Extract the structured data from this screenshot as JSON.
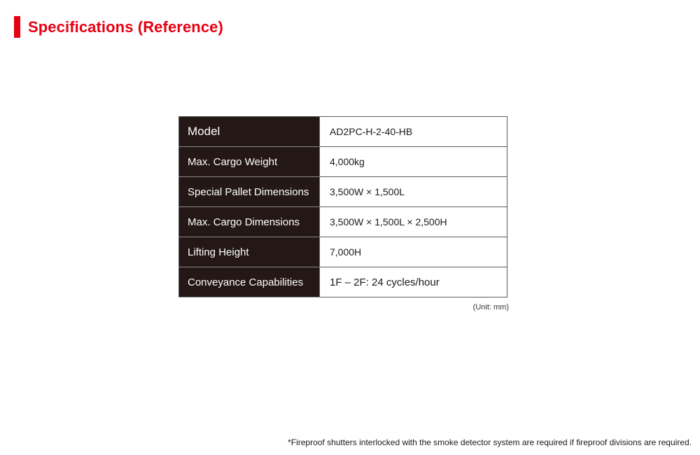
{
  "header": {
    "title": "Specifications (Reference)",
    "accent_color": "#e60012"
  },
  "specs": {
    "rows": [
      {
        "label": "Model",
        "value": "AD2PC-H-2-40-HB"
      },
      {
        "label": "Max. Cargo Weight",
        "value": "4,000kg"
      },
      {
        "label": "Special Pallet Dimensions",
        "value": "3,500W × 1,500L"
      },
      {
        "label": "Max. Cargo Dimensions",
        "value": "3,500W × 1,500L × 2,500H"
      },
      {
        "label": "Lifting Height",
        "value": "7,000H"
      },
      {
        "label": "Conveyance Capabilities",
        "value": "1F – 2F: 24 cycles/hour"
      }
    ],
    "unit_note": "(Unit: mm)",
    "label_bg_color": "#231815"
  },
  "footnote": "*Fireproof shutters interlocked with the smoke detector system are required if fireproof divisions are required."
}
